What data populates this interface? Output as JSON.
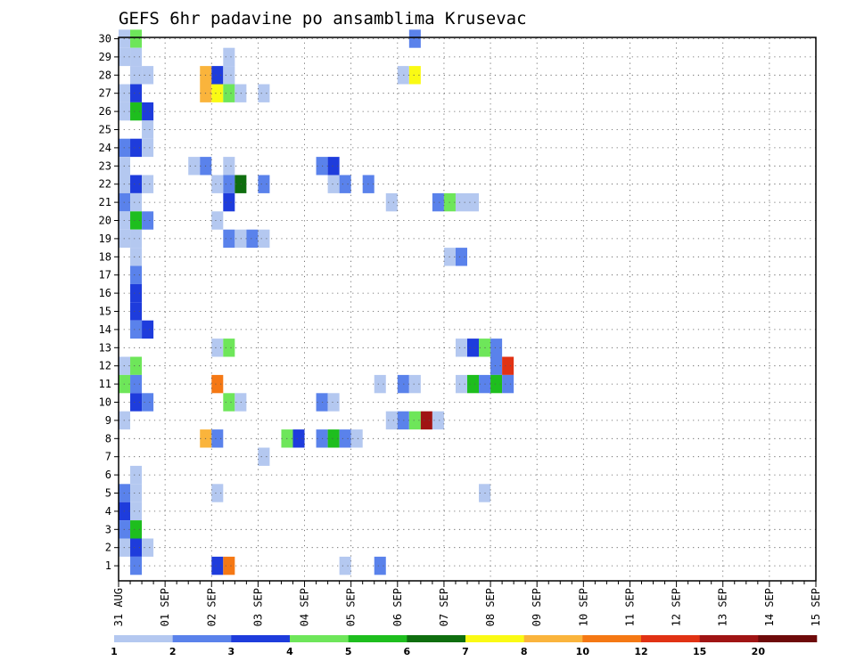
{
  "chart_data": {
    "type": "heatmap",
    "title": "GEFS 6hr padavine po ansamblima Krusevac",
    "xlabel": "",
    "ylabel": "",
    "x_start": "31 AUG 00Z",
    "x_step_hours": 6,
    "x_ticks": [
      "31 AUG",
      "01 SEP",
      "02 SEP",
      "03 SEP",
      "04 SEP",
      "05 SEP",
      "06 SEP",
      "07 SEP",
      "08 SEP",
      "09 SEP",
      "10 SEP",
      "11 SEP",
      "12 SEP",
      "13 SEP",
      "14 SEP",
      "15 SEP"
    ],
    "y_ticks": [
      1,
      2,
      3,
      4,
      5,
      6,
      7,
      8,
      9,
      10,
      11,
      12,
      13,
      14,
      15,
      16,
      17,
      18,
      19,
      20,
      21,
      22,
      23,
      24,
      25,
      26,
      27,
      28,
      29,
      30
    ],
    "grid": true,
    "legend_placement": "bottom",
    "color_levels": [
      1,
      2,
      3,
      4,
      5,
      6,
      7,
      8,
      10,
      12,
      15,
      20
    ],
    "colors": [
      "#b4c8f0",
      "#5a82eb",
      "#1e3cdc",
      "#6ee65a",
      "#1ebe1e",
      "#0f6e0f",
      "#fafa14",
      "#fab43c",
      "#f57814",
      "#e13214",
      "#a01414",
      "#6e0a0a"
    ],
    "cell_format": "[ensemble_member, time_step_index_6h, color_class_index]",
    "cells": [
      [
        30,
        0,
        1
      ],
      [
        30,
        1,
        4
      ],
      [
        30,
        25,
        2
      ],
      [
        29,
        0,
        1
      ],
      [
        29,
        1,
        1
      ],
      [
        29,
        9,
        1
      ],
      [
        28,
        1,
        1
      ],
      [
        28,
        2,
        1
      ],
      [
        28,
        7,
        8
      ],
      [
        28,
        8,
        3
      ],
      [
        28,
        9,
        1
      ],
      [
        28,
        24,
        1
      ],
      [
        28,
        25,
        7
      ],
      [
        27,
        0,
        1
      ],
      [
        27,
        1,
        3
      ],
      [
        27,
        7,
        8
      ],
      [
        27,
        8,
        7
      ],
      [
        27,
        9,
        4
      ],
      [
        27,
        10,
        1
      ],
      [
        27,
        12,
        1
      ],
      [
        26,
        0,
        1
      ],
      [
        26,
        1,
        5
      ],
      [
        26,
        2,
        3
      ],
      [
        25,
        2,
        1
      ],
      [
        24,
        0,
        2
      ],
      [
        24,
        1,
        3
      ],
      [
        24,
        2,
        1
      ],
      [
        23,
        0,
        1
      ],
      [
        23,
        6,
        1
      ],
      [
        23,
        7,
        2
      ],
      [
        23,
        9,
        1
      ],
      [
        23,
        17,
        2
      ],
      [
        23,
        18,
        3
      ],
      [
        22,
        0,
        1
      ],
      [
        22,
        1,
        3
      ],
      [
        22,
        2,
        1
      ],
      [
        22,
        8,
        1
      ],
      [
        22,
        9,
        2
      ],
      [
        22,
        10,
        6
      ],
      [
        22,
        12,
        2
      ],
      [
        22,
        18,
        1
      ],
      [
        22,
        19,
        2
      ],
      [
        22,
        21,
        2
      ],
      [
        21,
        0,
        2
      ],
      [
        21,
        1,
        1
      ],
      [
        21,
        9,
        3
      ],
      [
        21,
        23,
        1
      ],
      [
        21,
        27,
        2
      ],
      [
        21,
        28,
        4
      ],
      [
        21,
        29,
        1
      ],
      [
        21,
        30,
        1
      ],
      [
        20,
        0,
        1
      ],
      [
        20,
        1,
        5
      ],
      [
        20,
        2,
        2
      ],
      [
        20,
        8,
        1
      ],
      [
        19,
        0,
        1
      ],
      [
        19,
        1,
        1
      ],
      [
        19,
        9,
        2
      ],
      [
        19,
        10,
        1
      ],
      [
        19,
        11,
        2
      ],
      [
        19,
        12,
        1
      ],
      [
        18,
        1,
        1
      ],
      [
        18,
        28,
        1
      ],
      [
        18,
        29,
        2
      ],
      [
        17,
        1,
        2
      ],
      [
        16,
        1,
        3
      ],
      [
        15,
        1,
        3
      ],
      [
        14,
        1,
        2
      ],
      [
        14,
        2,
        3
      ],
      [
        13,
        8,
        1
      ],
      [
        13,
        9,
        4
      ],
      [
        13,
        29,
        1
      ],
      [
        13,
        30,
        3
      ],
      [
        13,
        31,
        4
      ],
      [
        13,
        32,
        2
      ],
      [
        12,
        0,
        1
      ],
      [
        12,
        1,
        4
      ],
      [
        12,
        32,
        2
      ],
      [
        12,
        33,
        10
      ],
      [
        11,
        0,
        4
      ],
      [
        11,
        1,
        2
      ],
      [
        11,
        8,
        9
      ],
      [
        11,
        22,
        1
      ],
      [
        11,
        24,
        2
      ],
      [
        11,
        25,
        1
      ],
      [
        11,
        29,
        1
      ],
      [
        11,
        30,
        5
      ],
      [
        11,
        31,
        2
      ],
      [
        11,
        32,
        5
      ],
      [
        11,
        33,
        2
      ],
      [
        10,
        1,
        3
      ],
      [
        10,
        2,
        2
      ],
      [
        10,
        9,
        4
      ],
      [
        10,
        10,
        1
      ],
      [
        10,
        17,
        2
      ],
      [
        10,
        18,
        1
      ],
      [
        9,
        0,
        1
      ],
      [
        9,
        23,
        1
      ],
      [
        9,
        24,
        2
      ],
      [
        9,
        25,
        4
      ],
      [
        9,
        26,
        11
      ],
      [
        9,
        27,
        1
      ],
      [
        8,
        7,
        8
      ],
      [
        8,
        8,
        2
      ],
      [
        8,
        14,
        4
      ],
      [
        8,
        15,
        3
      ],
      [
        8,
        17,
        2
      ],
      [
        8,
        18,
        5
      ],
      [
        8,
        19,
        2
      ],
      [
        8,
        20,
        1
      ],
      [
        7,
        12,
        1
      ],
      [
        6,
        1,
        1
      ],
      [
        5,
        0,
        2
      ],
      [
        5,
        1,
        1
      ],
      [
        5,
        8,
        1
      ],
      [
        5,
        31,
        1
      ],
      [
        4,
        0,
        3
      ],
      [
        4,
        1,
        1
      ],
      [
        3,
        0,
        2
      ],
      [
        3,
        1,
        5
      ],
      [
        2,
        0,
        1
      ],
      [
        2,
        1,
        3
      ],
      [
        2,
        2,
        1
      ],
      [
        1,
        1,
        2
      ],
      [
        1,
        8,
        3
      ],
      [
        1,
        9,
        9
      ],
      [
        1,
        19,
        1
      ],
      [
        1,
        22,
        2
      ]
    ]
  }
}
